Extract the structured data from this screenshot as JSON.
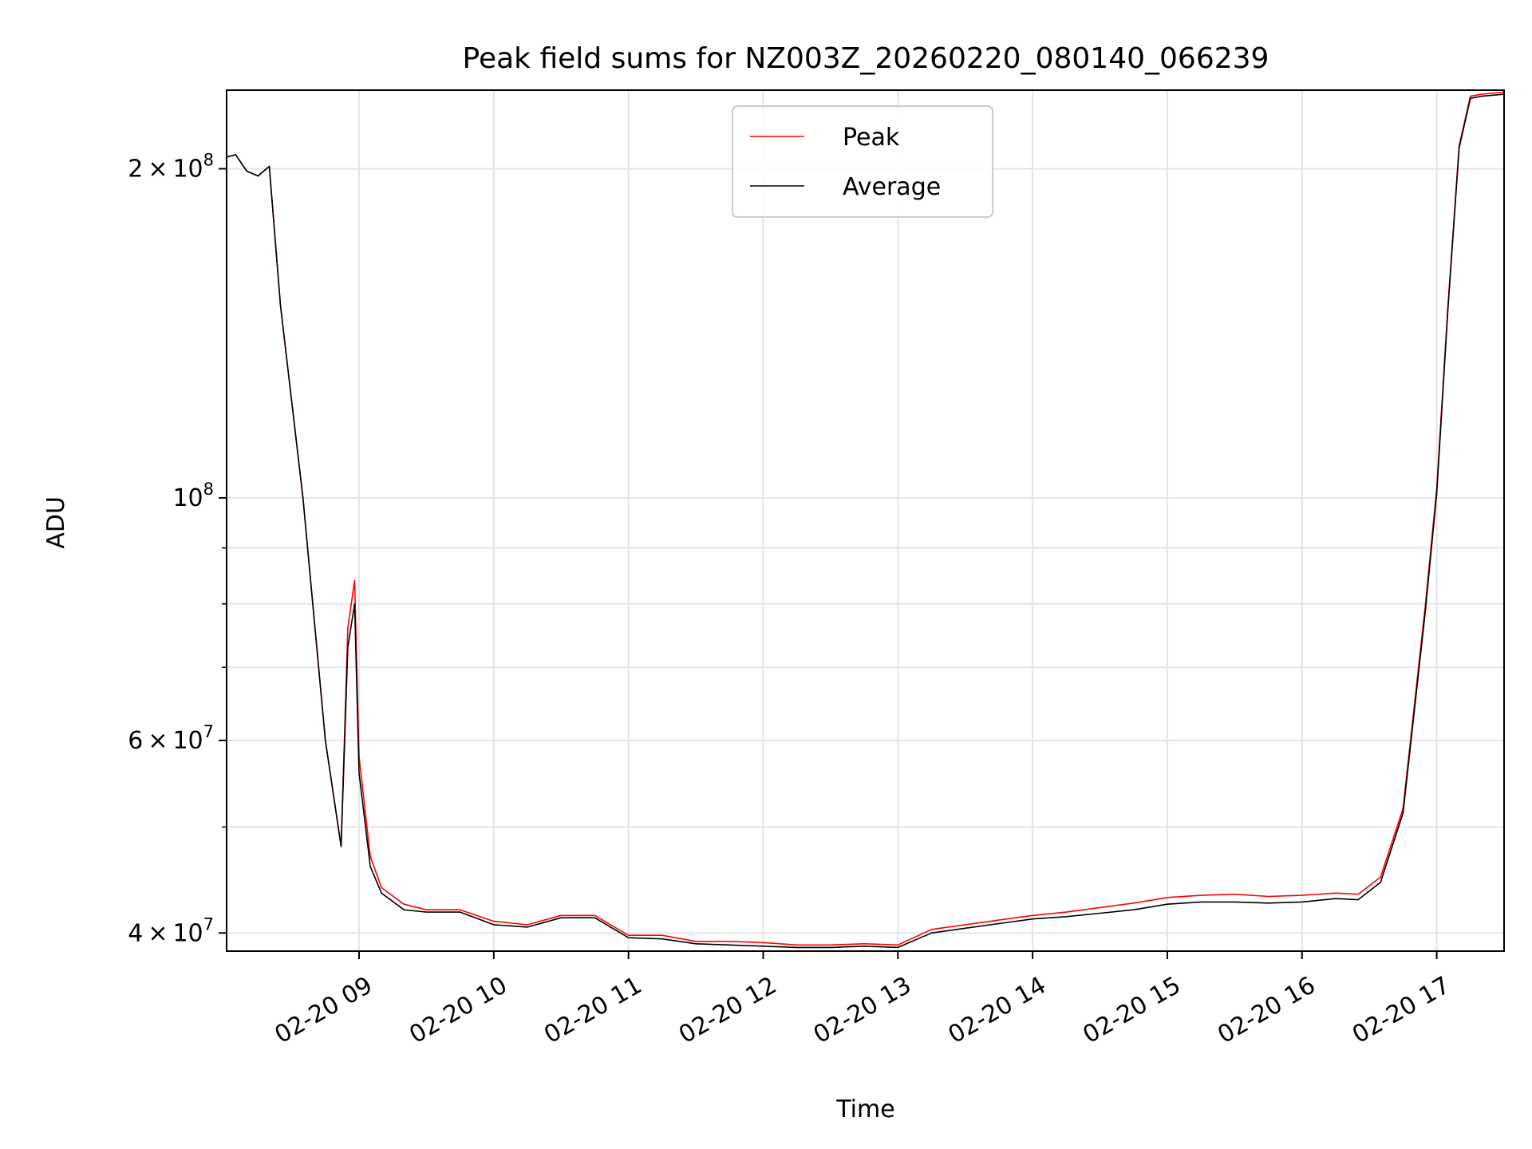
{
  "chart_data": {
    "type": "line",
    "title": "Peak field sums for NZ003Z_20260220_080140_066239",
    "xlabel": "Time",
    "ylabel": "ADU",
    "yscale": "log",
    "grid": true,
    "legend_position": "upper center",
    "xlim": [
      "2026-02-20 08:01",
      "2026-02-20 17:30"
    ],
    "ylim": [
      38500000,
      236000000
    ],
    "x_ticks": [
      "2026-02-20 09:00",
      "2026-02-20 10:00",
      "2026-02-20 11:00",
      "2026-02-20 12:00",
      "2026-02-20 13:00",
      "2026-02-20 14:00",
      "2026-02-20 15:00",
      "2026-02-20 16:00",
      "2026-02-20 17:00"
    ],
    "x_tick_labels": [
      "02-20 09",
      "02-20 10",
      "02-20 11",
      "02-20 12",
      "02-20 13",
      "02-20 14",
      "02-20 15",
      "02-20 16",
      "02-20 17"
    ],
    "y_major_ticks": [
      {
        "value": 40000000,
        "base": "4 × 10",
        "exp": "7"
      },
      {
        "value": 60000000,
        "base": "6 × 10",
        "exp": "7"
      },
      {
        "value": 100000000,
        "base": "10",
        "exp": "8"
      },
      {
        "value": 200000000,
        "base": "2 × 10",
        "exp": "8"
      }
    ],
    "y_minor_ticks": [
      50000000,
      70000000,
      80000000,
      90000000
    ],
    "series": [
      {
        "name": "Peak",
        "color": "#ff0000",
        "x": [
          "2026-02-20 08:01",
          "2026-02-20 08:05",
          "2026-02-20 08:10",
          "2026-02-20 08:15",
          "2026-02-20 08:20",
          "2026-02-20 08:25",
          "2026-02-20 08:35",
          "2026-02-20 08:45",
          "2026-02-20 08:52",
          "2026-02-20 08:55",
          "2026-02-20 08:58",
          "2026-02-20 09:00",
          "2026-02-20 09:05",
          "2026-02-20 09:10",
          "2026-02-20 09:20",
          "2026-02-20 09:30",
          "2026-02-20 09:45",
          "2026-02-20 10:00",
          "2026-02-20 10:15",
          "2026-02-20 10:30",
          "2026-02-20 10:45",
          "2026-02-20 11:00",
          "2026-02-20 11:15",
          "2026-02-20 11:30",
          "2026-02-20 11:45",
          "2026-02-20 12:00",
          "2026-02-20 12:15",
          "2026-02-20 12:30",
          "2026-02-20 12:45",
          "2026-02-20 13:00",
          "2026-02-20 13:15",
          "2026-02-20 13:30",
          "2026-02-20 13:45",
          "2026-02-20 14:00",
          "2026-02-20 14:15",
          "2026-02-20 14:30",
          "2026-02-20 14:45",
          "2026-02-20 15:00",
          "2026-02-20 15:15",
          "2026-02-20 15:30",
          "2026-02-20 15:45",
          "2026-02-20 16:00",
          "2026-02-20 16:15",
          "2026-02-20 16:25",
          "2026-02-20 16:35",
          "2026-02-20 16:45",
          "2026-02-20 16:55",
          "2026-02-20 17:00",
          "2026-02-20 17:05",
          "2026-02-20 17:10",
          "2026-02-20 17:15",
          "2026-02-20 17:20",
          "2026-02-20 17:30"
        ],
        "y": [
          205000000,
          206000000,
          199000000,
          197000000,
          201000000,
          150000000,
          100000000,
          60000000,
          48000000,
          76000000,
          84000000,
          58000000,
          47000000,
          44000000,
          42500000,
          42000000,
          42000000,
          41000000,
          40700000,
          41500000,
          41500000,
          39800000,
          39800000,
          39300000,
          39300000,
          39200000,
          39000000,
          39000000,
          39100000,
          39000000,
          40300000,
          40700000,
          41100000,
          41500000,
          41800000,
          42200000,
          42600000,
          43100000,
          43300000,
          43400000,
          43200000,
          43300000,
          43500000,
          43400000,
          45000000,
          52000000,
          80000000,
          102000000,
          150000000,
          210000000,
          233000000,
          234000000,
          235000000
        ]
      },
      {
        "name": "Average",
        "color": "#000000",
        "x": [
          "2026-02-20 08:01",
          "2026-02-20 08:05",
          "2026-02-20 08:10",
          "2026-02-20 08:15",
          "2026-02-20 08:20",
          "2026-02-20 08:25",
          "2026-02-20 08:35",
          "2026-02-20 08:45",
          "2026-02-20 08:52",
          "2026-02-20 08:55",
          "2026-02-20 08:58",
          "2026-02-20 09:00",
          "2026-02-20 09:05",
          "2026-02-20 09:10",
          "2026-02-20 09:20",
          "2026-02-20 09:30",
          "2026-02-20 09:45",
          "2026-02-20 10:00",
          "2026-02-20 10:15",
          "2026-02-20 10:30",
          "2026-02-20 10:45",
          "2026-02-20 11:00",
          "2026-02-20 11:15",
          "2026-02-20 11:30",
          "2026-02-20 11:45",
          "2026-02-20 12:00",
          "2026-02-20 12:15",
          "2026-02-20 12:30",
          "2026-02-20 12:45",
          "2026-02-20 13:00",
          "2026-02-20 13:15",
          "2026-02-20 13:30",
          "2026-02-20 13:45",
          "2026-02-20 14:00",
          "2026-02-20 14:15",
          "2026-02-20 14:30",
          "2026-02-20 14:45",
          "2026-02-20 15:00",
          "2026-02-20 15:15",
          "2026-02-20 15:30",
          "2026-02-20 15:45",
          "2026-02-20 16:00",
          "2026-02-20 16:15",
          "2026-02-20 16:25",
          "2026-02-20 16:35",
          "2026-02-20 16:45",
          "2026-02-20 16:55",
          "2026-02-20 17:00",
          "2026-02-20 17:05",
          "2026-02-20 17:10",
          "2026-02-20 17:15",
          "2026-02-20 17:20",
          "2026-02-20 17:30"
        ],
        "y": [
          205000000,
          206000000,
          199000000,
          197000000,
          201000000,
          150000000,
          100000000,
          60000000,
          48000000,
          73000000,
          80000000,
          56000000,
          46000000,
          43500000,
          42000000,
          41800000,
          41800000,
          40700000,
          40500000,
          41300000,
          41300000,
          39600000,
          39500000,
          39100000,
          39000000,
          38900000,
          38800000,
          38800000,
          38900000,
          38800000,
          40000000,
          40400000,
          40800000,
          41200000,
          41400000,
          41700000,
          42000000,
          42500000,
          42700000,
          42700000,
          42600000,
          42700000,
          43000000,
          42900000,
          44500000,
          51500000,
          79000000,
          101000000,
          149000000,
          209000000,
          232000000,
          233000000,
          234000000
        ]
      }
    ]
  }
}
